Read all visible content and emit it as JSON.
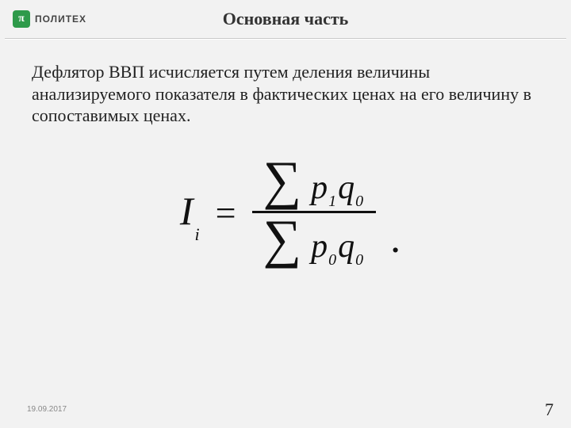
{
  "header": {
    "logo_glyph": "π",
    "logo_text": "ПОЛИТЕХ",
    "title": "Основная часть"
  },
  "body": {
    "paragraph": "Дефлятор ВВП исчисляется путем деления величины анализируемого показателя в фактических ценах на его величину в сопоставимых ценах."
  },
  "formula": {
    "lhs_var": "I",
    "lhs_sub": "i",
    "eq": "=",
    "sigma": "∑",
    "num_p": "p",
    "num_p_sub": "1",
    "num_q": "q",
    "num_q_sub": "0",
    "den_p": "p",
    "den_p_sub": "0",
    "den_q": "q",
    "den_q_sub": "0",
    "period": "."
  },
  "footer": {
    "date": "19.09.2017",
    "page": "7"
  },
  "colors": {
    "background": "#f2f2f2",
    "text": "#1a1a1a",
    "accent_green": "#2e9a4a",
    "divider": "#c9c9c9"
  }
}
